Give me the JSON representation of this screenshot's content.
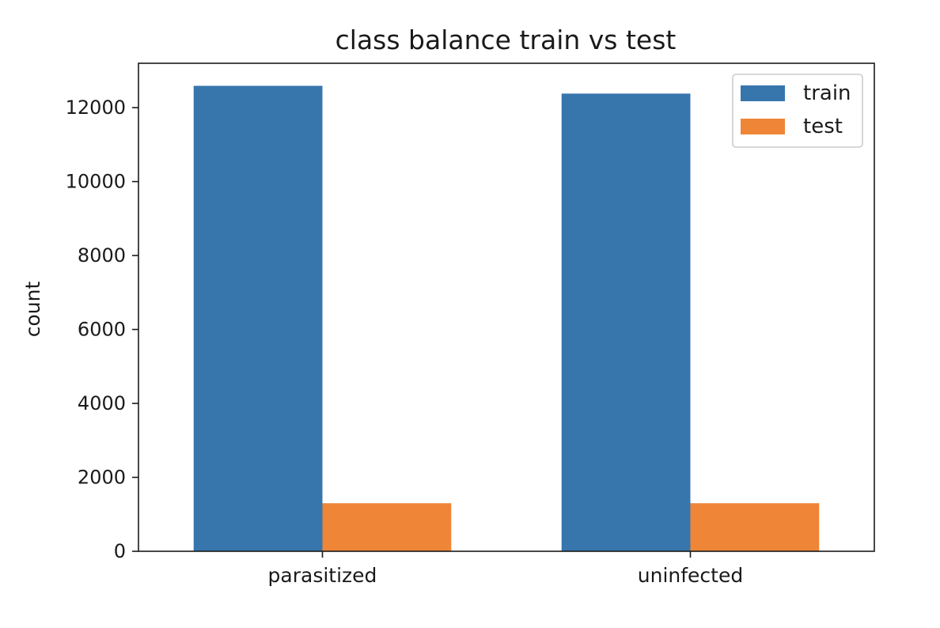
{
  "chart_data": {
    "type": "bar",
    "title": "class balance train vs test",
    "xlabel": "",
    "ylabel": "count",
    "categories": [
      "parasitized",
      "uninfected"
    ],
    "series": [
      {
        "name": "train",
        "values": [
          12590,
          12380
        ],
        "color": "#3775ad"
      },
      {
        "name": "test",
        "values": [
          1300,
          1300
        ],
        "color": "#ef8536"
      }
    ],
    "ylim": [
      0,
      13200
    ],
    "yticks": [
      0,
      2000,
      4000,
      6000,
      8000,
      10000,
      12000
    ],
    "ytick_labels": [
      "0",
      "2000",
      "4000",
      "6000",
      "8000",
      "10000",
      "12000"
    ],
    "legend": {
      "placement": "top-right",
      "entries": [
        "train",
        "test"
      ]
    },
    "grid": false
  }
}
